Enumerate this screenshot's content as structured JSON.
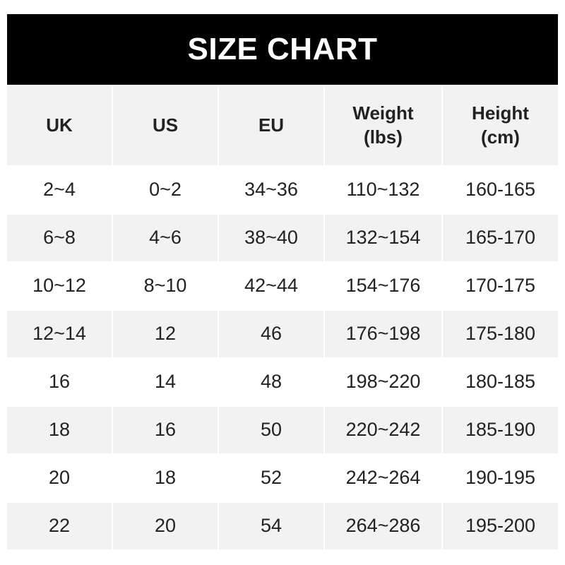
{
  "title": "SIZE CHART",
  "headers": [
    "UK",
    "US",
    "EU",
    "Weight\n(lbs)",
    "Height\n(cm)"
  ],
  "rows": [
    [
      "2~4",
      "0~2",
      "34~36",
      "110~132",
      "160-165"
    ],
    [
      "6~8",
      "4~6",
      "38~40",
      "132~154",
      "165-170"
    ],
    [
      "10~12",
      "8~10",
      "42~44",
      "154~176",
      "170-175"
    ],
    [
      "12~14",
      "12",
      "46",
      "176~198",
      "175-180"
    ],
    [
      "16",
      "14",
      "48",
      "198~220",
      "180-185"
    ],
    [
      "18",
      "16",
      "50",
      "220~242",
      "185-190"
    ],
    [
      "20",
      "18",
      "52",
      "242~264",
      "190-195"
    ],
    [
      "22",
      "20",
      "54",
      "264~286",
      "195-200"
    ]
  ],
  "colors": {
    "banner": "#000000",
    "alt_row": "#f2f2f2"
  }
}
